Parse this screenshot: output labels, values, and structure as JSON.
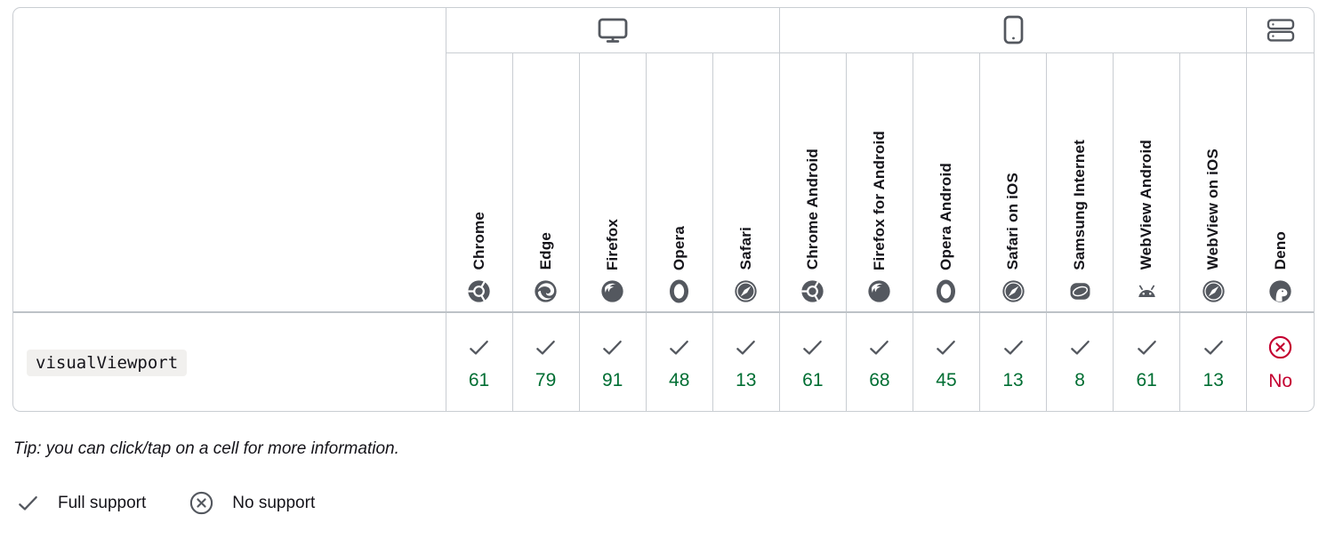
{
  "compat_table": {
    "feature_code": "visualViewport",
    "platform_groups": [
      {
        "name": "desktop",
        "icon": "desktop-icon",
        "span": 5
      },
      {
        "name": "mobile",
        "icon": "mobile-icon",
        "span": 7
      },
      {
        "name": "server",
        "icon": "server-icon",
        "span": 1
      }
    ],
    "browsers": [
      {
        "label": "Chrome",
        "icon": "chrome-icon",
        "support": "yes",
        "version": "61"
      },
      {
        "label": "Edge",
        "icon": "edge-icon",
        "support": "yes",
        "version": "79"
      },
      {
        "label": "Firefox",
        "icon": "firefox-icon",
        "support": "yes",
        "version": "91"
      },
      {
        "label": "Opera",
        "icon": "opera-icon",
        "support": "yes",
        "version": "48"
      },
      {
        "label": "Safari",
        "icon": "safari-icon",
        "support": "yes",
        "version": "13"
      },
      {
        "label": "Chrome Android",
        "icon": "chrome-icon",
        "support": "yes",
        "version": "61"
      },
      {
        "label": "Firefox for Android",
        "icon": "firefox-icon",
        "support": "yes",
        "version": "68"
      },
      {
        "label": "Opera Android",
        "icon": "opera-icon",
        "support": "yes",
        "version": "45"
      },
      {
        "label": "Safari on iOS",
        "icon": "safari-icon",
        "support": "yes",
        "version": "13"
      },
      {
        "label": "Samsung Internet",
        "icon": "samsung-icon",
        "support": "yes",
        "version": "8"
      },
      {
        "label": "WebView Android",
        "icon": "android-icon",
        "support": "yes",
        "version": "61"
      },
      {
        "label": "WebView on iOS",
        "icon": "safari-icon",
        "support": "yes",
        "version": "13"
      },
      {
        "label": "Deno",
        "icon": "deno-icon",
        "support": "no",
        "version": "No"
      }
    ]
  },
  "tip_text": "Tip: you can click/tap on a cell for more information.",
  "legend": {
    "items": [
      {
        "icon": "check-icon",
        "label": "Full support"
      },
      {
        "icon": "cross-circle-icon",
        "label": "No support"
      }
    ]
  },
  "colors": {
    "border": "#c9cdd2",
    "border_strong": "#bdc2c7",
    "icon_gray": "#54585f",
    "support_yes": "#006e33",
    "support_no": "#c40030",
    "code_background": "#f1f0ee",
    "text": "#15141a"
  }
}
